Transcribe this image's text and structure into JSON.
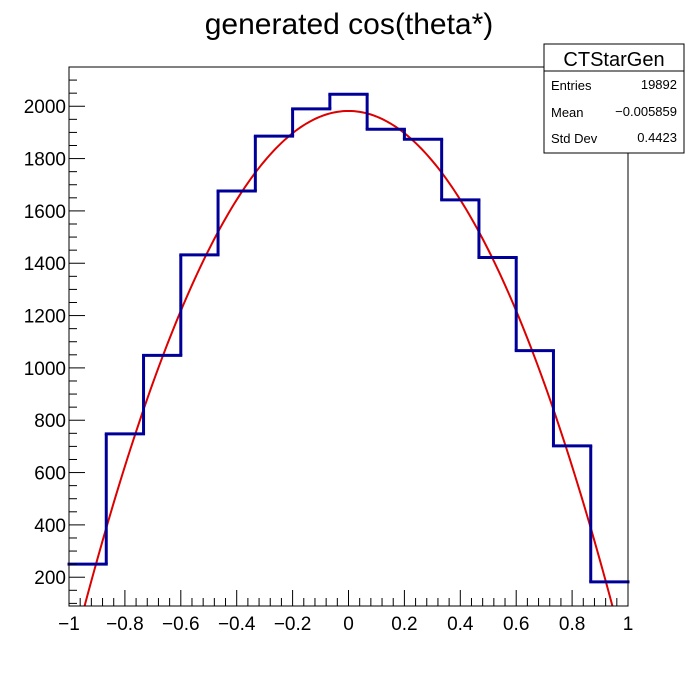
{
  "chart_data": {
    "type": "histogram",
    "title": "generated cos(theta*)",
    "xlabel": "",
    "ylabel": "",
    "xlim": [
      -1,
      1
    ],
    "ylim": [
      90,
      2150
    ],
    "x_ticks": [
      -1,
      -0.8,
      -0.6,
      -0.4,
      -0.2,
      0,
      0.2,
      0.4,
      0.6,
      0.8,
      1
    ],
    "x_tick_labels": [
      "−1",
      "−0.8",
      "−0.6",
      "−0.4",
      "−0.2",
      "0",
      "0.2",
      "0.4",
      "0.6",
      "0.8",
      "1"
    ],
    "y_ticks": [
      200,
      400,
      600,
      800,
      1000,
      1200,
      1400,
      1600,
      1800,
      2000
    ],
    "y_tick_labels": [
      "200",
      "400",
      "600",
      "800",
      "1000",
      "1200",
      "1400",
      "1600",
      "1800",
      "2000"
    ],
    "bin_edges": [
      -1,
      -0.8667,
      -0.7333,
      -0.6,
      -0.4667,
      -0.3333,
      -0.2,
      -0.0667,
      0.0667,
      0.2,
      0.3333,
      0.4667,
      0.6,
      0.7333,
      0.8667,
      1
    ],
    "bin_values": [
      250,
      748,
      1048,
      1432,
      1676,
      1886,
      1990,
      2046,
      1912,
      1874,
      1642,
      1422,
      1066,
      702,
      182
    ],
    "histogram_color": "#000099",
    "fit": {
      "type": "quadratic",
      "peak_x": 0,
      "peak_y": 1982,
      "curvature": 2122,
      "color": "#dd0000"
    },
    "legend": "top-right",
    "grid": false
  },
  "stats": {
    "name": "CTStarGen",
    "rows": [
      {
        "label": "Entries",
        "value": "19892"
      },
      {
        "label": "Mean",
        "value": "−0.005859"
      },
      {
        "label": "Std Dev",
        "value": "0.4423"
      }
    ]
  }
}
